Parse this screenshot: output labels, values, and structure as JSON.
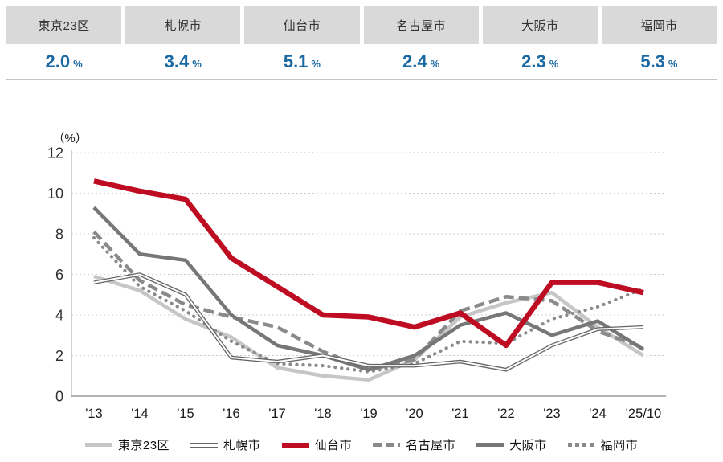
{
  "summary_table": {
    "cities": [
      {
        "name": "東京23区",
        "value": "2.0",
        "unit": "%"
      },
      {
        "name": "札幌市",
        "value": "3.4",
        "unit": "%"
      },
      {
        "name": "仙台市",
        "value": "5.1",
        "unit": "%"
      },
      {
        "name": "名古屋市",
        "value": "2.4",
        "unit": "%"
      },
      {
        "name": "大阪市",
        "value": "2.3",
        "unit": "%"
      },
      {
        "name": "福岡市",
        "value": "5.3",
        "unit": "%"
      }
    ]
  },
  "chart_data": {
    "type": "line",
    "unit_label": "（%）",
    "x": [
      "'13",
      "'14",
      "'15",
      "'16",
      "'17",
      "'18",
      "'19",
      "'20",
      "'21",
      "'22",
      "'23",
      "'24",
      "'25/10"
    ],
    "ylim": [
      0,
      12
    ],
    "ytick_step": 2,
    "grid": true,
    "legend_position": "bottom",
    "series": [
      {
        "name": "東京23区",
        "style": "solid-light",
        "color": "#c6c6c6",
        "z": 1,
        "values": [
          5.9,
          5.2,
          3.8,
          2.9,
          1.4,
          1.0,
          0.8,
          1.8,
          3.9,
          4.6,
          5.1,
          3.4,
          2.0
        ]
      },
      {
        "name": "札幌市",
        "style": "double-thin",
        "color": "#666666",
        "z": 5,
        "values": [
          5.6,
          6.0,
          5.0,
          1.9,
          1.7,
          2.0,
          1.5,
          1.5,
          1.7,
          1.3,
          2.5,
          3.3,
          3.4
        ]
      },
      {
        "name": "仙台市",
        "style": "solid-bold",
        "color": "#be0d23",
        "z": 6,
        "values": [
          10.6,
          10.1,
          9.7,
          6.8,
          5.4,
          4.0,
          3.9,
          3.4,
          4.1,
          2.5,
          5.6,
          5.6,
          5.1
        ]
      },
      {
        "name": "名古屋市",
        "style": "dashed",
        "color": "#8a8a8a",
        "z": 3,
        "values": [
          8.1,
          5.7,
          4.5,
          3.9,
          3.4,
          2.2,
          1.3,
          1.8,
          4.2,
          4.9,
          4.7,
          3.2,
          2.4
        ]
      },
      {
        "name": "大阪市",
        "style": "solid",
        "color": "#777777",
        "z": 4,
        "values": [
          9.3,
          7.0,
          6.7,
          4.0,
          2.5,
          2.0,
          1.3,
          2.0,
          3.5,
          4.1,
          3.0,
          3.7,
          2.3
        ]
      },
      {
        "name": "福岡市",
        "style": "dotted",
        "color": "#8a8a8a",
        "z": 2,
        "values": [
          7.8,
          5.4,
          4.2,
          2.7,
          1.6,
          1.5,
          1.2,
          1.6,
          2.7,
          2.6,
          3.8,
          4.4,
          5.3
        ]
      }
    ]
  },
  "colors": {
    "table_header_bg": "#d9d9d9",
    "value_text": "#1b69a3",
    "grid_line": "#cccccc",
    "axis_line": "#9a9a9a",
    "tick_text": "#2f2f2f"
  }
}
